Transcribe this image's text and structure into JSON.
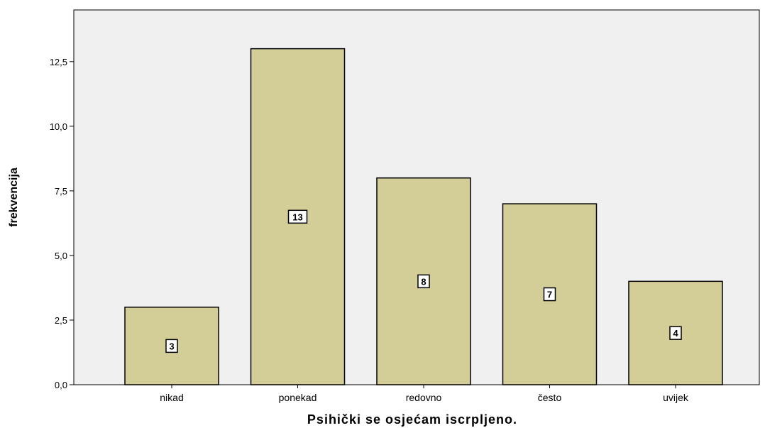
{
  "chart_data": {
    "type": "bar",
    "categories": [
      "nikad",
      "ponekad",
      "redovno",
      "često",
      "uvijek"
    ],
    "values": [
      3,
      13,
      8,
      7,
      4
    ],
    "data_labels": [
      "3",
      "13",
      "8",
      "7",
      "4"
    ],
    "xlabel": "Psihički se osjećam iscrpljeno.",
    "ylabel": "frekvencija",
    "ylim": [
      0,
      14.5
    ],
    "yticks": [
      0,
      2.5,
      5,
      7.5,
      10,
      12.5
    ],
    "ytick_labels": [
      "0,0",
      "2,5",
      "5,0",
      "7,5",
      "10,0",
      "12,5"
    ],
    "grid": false,
    "legend": "none",
    "colors": {
      "bar_fill": "#d3ce97",
      "bar_stroke": "#000000",
      "plot_background": "#f0f0f0"
    }
  }
}
